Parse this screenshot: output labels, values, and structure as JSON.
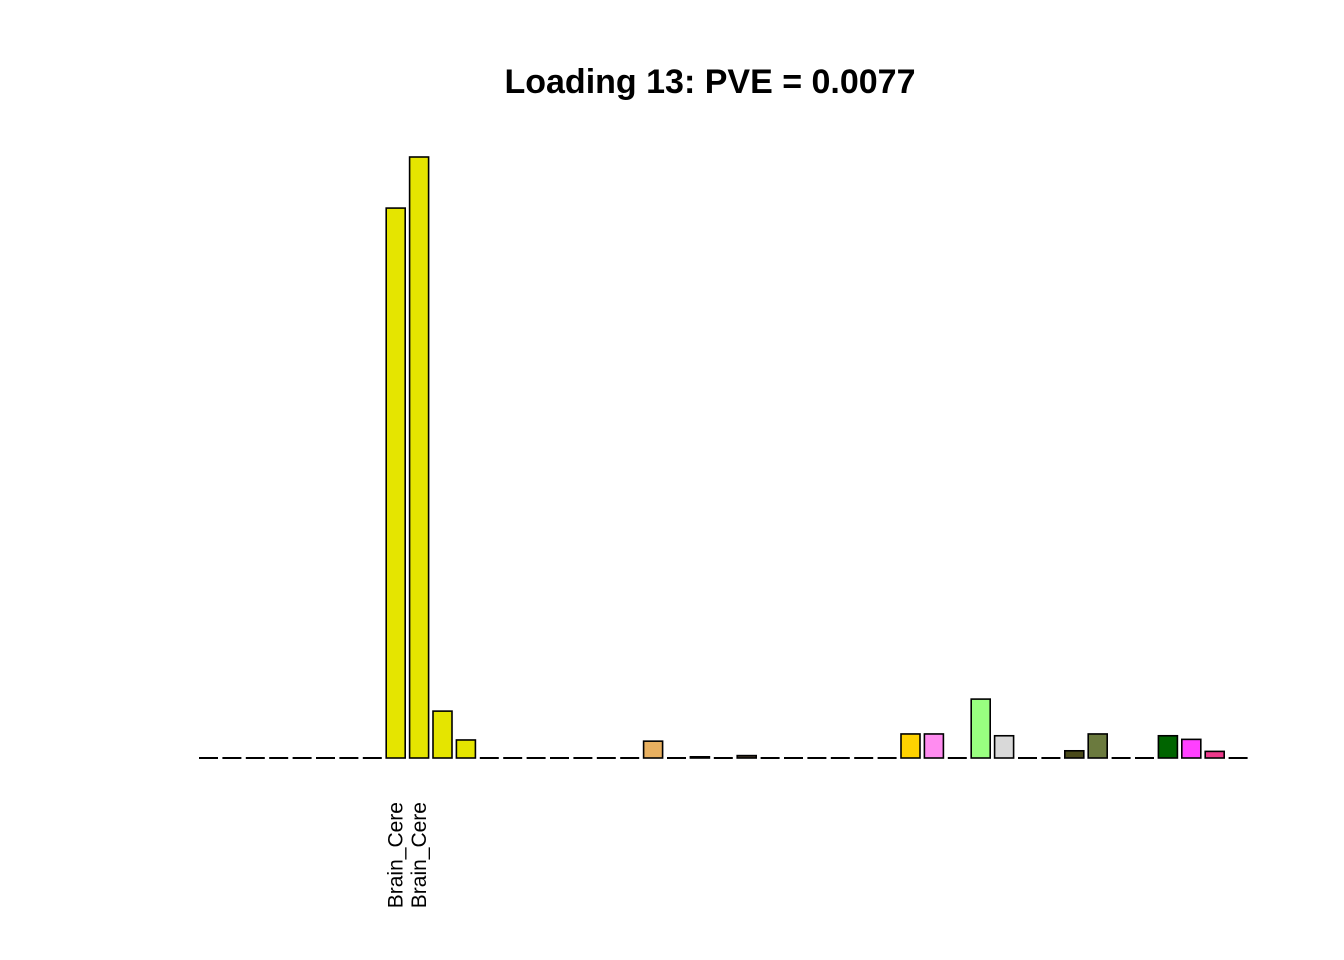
{
  "chart_data": {
    "type": "bar",
    "title": "Loading 13: PVE = 0.0077",
    "xlabel": "",
    "ylabel": "",
    "ylim": [
      0,
      1.0
    ],
    "grid": false,
    "legend": "none",
    "labeled_bars": [
      8,
      9
    ],
    "bars": [
      {
        "label": "",
        "value": 0.0,
        "color": "#FFA500"
      },
      {
        "label": "",
        "value": 0.0,
        "color": "#FFA500"
      },
      {
        "label": "",
        "value": 0.0,
        "color": "#FFA500"
      },
      {
        "label": "",
        "value": 0.0,
        "color": "#CD2626"
      },
      {
        "label": "",
        "value": 0.0,
        "color": "#CD2626"
      },
      {
        "label": "",
        "value": 0.0,
        "color": "#FF6EB4"
      },
      {
        "label": "",
        "value": 0.0,
        "color": "#8B1A1A"
      },
      {
        "label": "",
        "value": 0.0,
        "color": "#EEEE00"
      },
      {
        "label": "Brain_Cere",
        "value": 0.915,
        "color": "#E5E500"
      },
      {
        "label": "Brain_Cere",
        "value": 1.0,
        "color": "#E5E500"
      },
      {
        "label": "",
        "value": 0.078,
        "color": "#E5E500"
      },
      {
        "label": "",
        "value": 0.03,
        "color": "#E5E500"
      },
      {
        "label": "",
        "value": 0.0,
        "color": "#EEEE00"
      },
      {
        "label": "",
        "value": 0.0,
        "color": "#EEEE00"
      },
      {
        "label": "",
        "value": 0.0,
        "color": "#EEEE00"
      },
      {
        "label": "",
        "value": 0.0,
        "color": "#EEEE00"
      },
      {
        "label": "",
        "value": 0.0,
        "color": "#EEEE00"
      },
      {
        "label": "",
        "value": 0.0,
        "color": "#EEEE00"
      },
      {
        "label": "",
        "value": 0.0,
        "color": "#EEEE00"
      },
      {
        "label": "",
        "value": 0.028,
        "color": "#E8B060"
      },
      {
        "label": "",
        "value": 0.0,
        "color": "#8FBC8F"
      },
      {
        "label": "",
        "value": 0.002,
        "color": "#1C1C1C"
      },
      {
        "label": "",
        "value": 0.0,
        "color": "#EEA9B8"
      },
      {
        "label": "",
        "value": 0.004,
        "color": "#4A3B2A"
      },
      {
        "label": "",
        "value": 0.0,
        "color": "#CDB79E"
      },
      {
        "label": "",
        "value": 0.0,
        "color": "#CDB79E"
      },
      {
        "label": "",
        "value": 0.0,
        "color": "#CDB79E"
      },
      {
        "label": "",
        "value": 0.0,
        "color": "#7A67EE"
      },
      {
        "label": "",
        "value": 0.0,
        "color": "#7A67EE"
      },
      {
        "label": "",
        "value": 0.0,
        "color": "#7A67EE"
      },
      {
        "label": "",
        "value": 0.04,
        "color": "#FFD200"
      },
      {
        "label": "",
        "value": 0.04,
        "color": "#FF8CF0"
      },
      {
        "label": "",
        "value": 0.0,
        "color": "#A6A6A6"
      },
      {
        "label": "",
        "value": 0.098,
        "color": "#99FF80"
      },
      {
        "label": "",
        "value": 0.037,
        "color": "#D9D9D9"
      },
      {
        "label": "",
        "value": 0.0,
        "color": "#8B7355"
      },
      {
        "label": "",
        "value": 0.0,
        "color": "#8B7355"
      },
      {
        "label": "",
        "value": 0.012,
        "color": "#4A4A1A"
      },
      {
        "label": "",
        "value": 0.04,
        "color": "#6B7A3E"
      },
      {
        "label": "",
        "value": 0.0,
        "color": "#B0C4DE"
      },
      {
        "label": "",
        "value": 0.0,
        "color": "#B0C4DE"
      },
      {
        "label": "",
        "value": 0.037,
        "color": "#006400"
      },
      {
        "label": "",
        "value": 0.031,
        "color": "#FF40FF"
      },
      {
        "label": "",
        "value": 0.011,
        "color": "#EE3A8C"
      },
      {
        "label": "",
        "value": 0.0,
        "color": "#EEEEEE"
      }
    ]
  }
}
